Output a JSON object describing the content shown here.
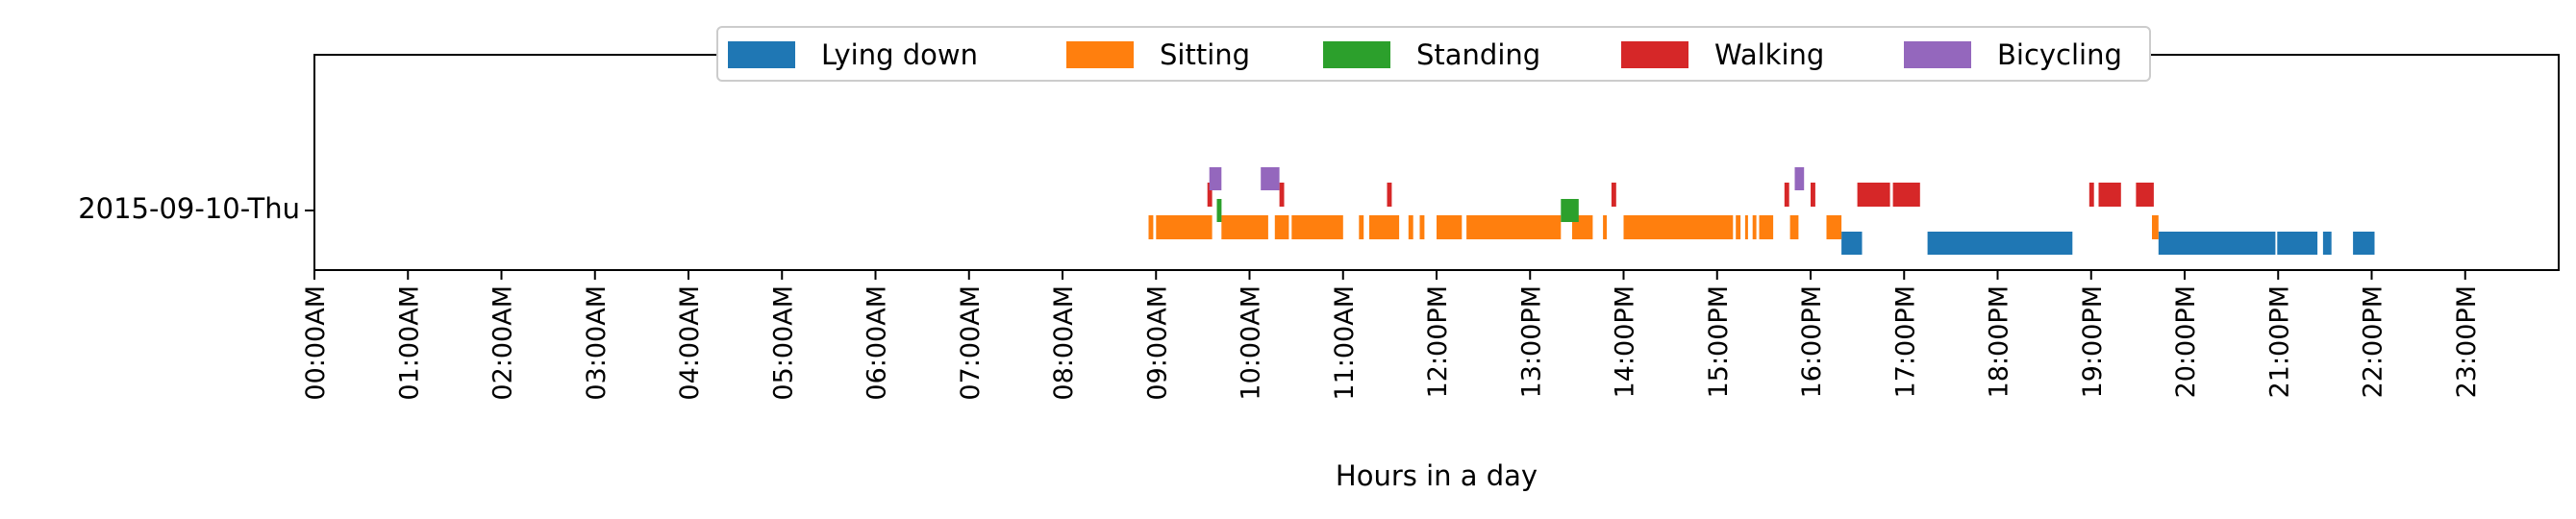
{
  "chart_data": {
    "type": "timeline",
    "title": "",
    "xlabel": "Hours in a day",
    "ylabel": "",
    "xlim": [
      0,
      24
    ],
    "row_label": "2015-09-10-Thu",
    "x_ticks": [
      "00:00AM",
      "01:00AM",
      "02:00AM",
      "03:00AM",
      "04:00AM",
      "05:00AM",
      "06:00AM",
      "07:00AM",
      "08:00AM",
      "09:00AM",
      "10:00AM",
      "11:00AM",
      "12:00PM",
      "13:00PM",
      "14:00PM",
      "15:00PM",
      "16:00PM",
      "17:00PM",
      "18:00PM",
      "19:00PM",
      "20:00PM",
      "21:00PM",
      "22:00PM",
      "23:00PM"
    ],
    "legend": {
      "placement": "upper-center"
    },
    "series": [
      {
        "name": "Lying down",
        "color": "#1f77b4",
        "intervals": [
          [
            16.33,
            16.55
          ],
          [
            17.25,
            18.8
          ],
          [
            19.72,
            20.97
          ],
          [
            20.99,
            21.42
          ],
          [
            21.48,
            21.57
          ],
          [
            21.8,
            22.03
          ]
        ]
      },
      {
        "name": "Sitting",
        "color": "#ff7f0e",
        "intervals": [
          [
            8.92,
            8.97
          ],
          [
            9.0,
            9.6
          ],
          [
            9.7,
            10.2
          ],
          [
            10.27,
            10.42
          ],
          [
            10.45,
            11.0
          ],
          [
            11.17,
            11.22
          ],
          [
            11.28,
            11.6
          ],
          [
            11.7,
            11.75
          ],
          [
            11.82,
            11.87
          ],
          [
            12.0,
            12.27
          ],
          [
            12.32,
            13.33
          ],
          [
            13.45,
            13.67
          ],
          [
            13.78,
            13.82
          ],
          [
            14.0,
            15.17
          ],
          [
            15.2,
            15.25
          ],
          [
            15.3,
            15.33
          ],
          [
            15.38,
            15.42
          ],
          [
            15.45,
            15.6
          ],
          [
            15.78,
            15.87
          ],
          [
            16.17,
            16.33
          ],
          [
            19.65,
            19.72
          ]
        ]
      },
      {
        "name": "Standing",
        "color": "#2ca02c",
        "intervals": [
          [
            9.65,
            9.7
          ],
          [
            13.33,
            13.52
          ]
        ]
      },
      {
        "name": "Walking",
        "color": "#d62728",
        "intervals": [
          [
            9.55,
            9.6
          ],
          [
            10.32,
            10.37
          ],
          [
            11.47,
            11.52
          ],
          [
            13.87,
            13.92
          ],
          [
            15.72,
            15.77
          ],
          [
            16.0,
            16.05
          ],
          [
            16.5,
            16.85
          ],
          [
            16.88,
            17.17
          ],
          [
            18.98,
            19.03
          ],
          [
            19.08,
            19.32
          ],
          [
            19.48,
            19.67
          ]
        ]
      },
      {
        "name": "Bicycling",
        "color": "#9467bd",
        "intervals": [
          [
            9.57,
            9.7
          ],
          [
            10.12,
            10.32
          ],
          [
            15.83,
            15.93
          ]
        ]
      }
    ]
  }
}
